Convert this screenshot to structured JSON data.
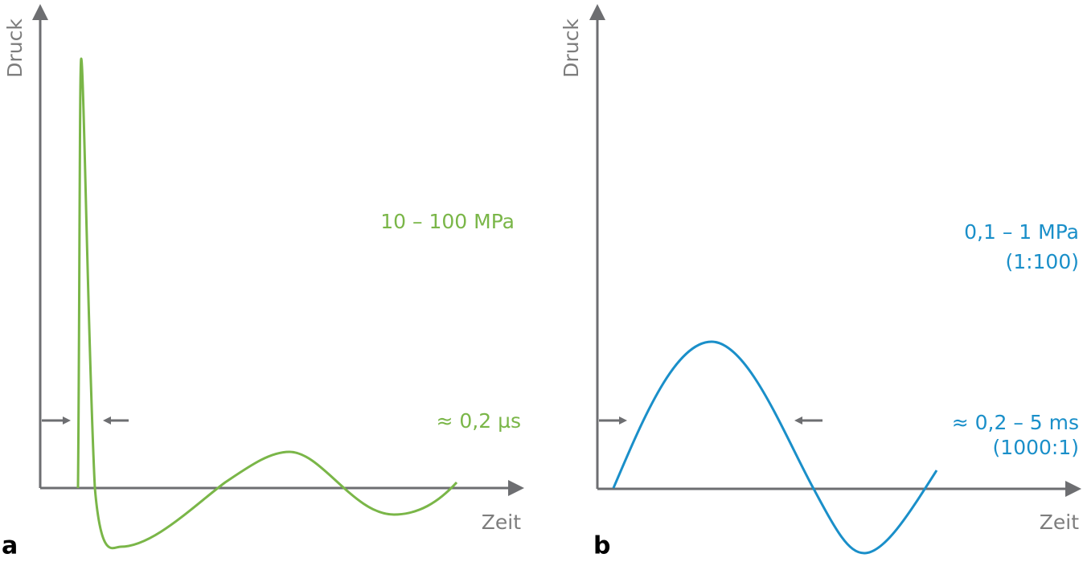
{
  "panels": [
    {
      "letter": "a",
      "y_axis_label": "Druck",
      "x_axis_label": "Zeit",
      "labels": [
        "10 – 100 MPa",
        "≈ 0,2 µs"
      ]
    },
    {
      "letter": "b",
      "y_axis_label": "Druck",
      "x_axis_label": "Zeit",
      "labels": [
        "0,1 – 1 MPa",
        "(1:100)",
        "≈ 0,2 – 5 ms",
        "(1000:1)"
      ]
    }
  ]
}
